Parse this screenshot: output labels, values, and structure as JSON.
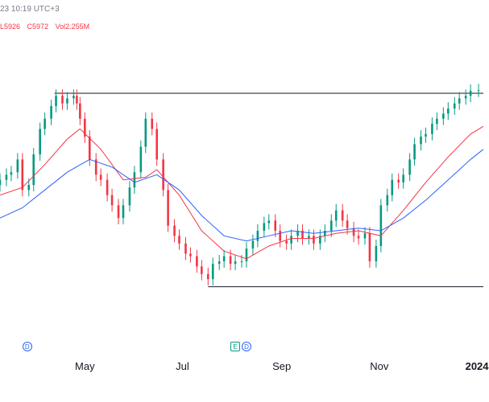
{
  "header": {
    "timestamp": "23 10:19 UTC+3",
    "low": "L5926",
    "close": "C5972",
    "volume": "Vol2.255M"
  },
  "events": [
    {
      "kind": "dividend",
      "letter": "D",
      "date": "2023-03-24"
    },
    {
      "kind": "earnings",
      "letter": "E",
      "date": "2023-08-01"
    },
    {
      "kind": "dividend",
      "letter": "D",
      "date": "2023-08-08"
    }
  ],
  "chart_data": {
    "type": "candlestick",
    "x_axis_labels": [
      {
        "label": "May",
        "date": "2023-05-01",
        "year": false
      },
      {
        "label": "Jul",
        "date": "2023-07-01",
        "year": false
      },
      {
        "label": "Sep",
        "date": "2023-09-01",
        "year": false
      },
      {
        "label": "Nov",
        "date": "2023-11-01",
        "year": false
      },
      {
        "label": "2024",
        "date": "2024-01-01",
        "year": true
      }
    ],
    "x_range": [
      "2023-03-09",
      "2024-01-05"
    ],
    "ylim": [
      5000,
      6200
    ],
    "y_axis_visible": false,
    "grid": false,
    "colors": {
      "up": "#089981",
      "down": "#f23645",
      "ma_fast": "#f23645",
      "ma_slow": "#2962ff",
      "level": "#131722"
    },
    "horizontal_levels": [
      {
        "value": 5960,
        "from": "2023-04-12",
        "to": "2024-01-05"
      },
      {
        "value": 5200,
        "from": "2023-07-17",
        "to": "2024-01-05"
      }
    ],
    "series": [
      {
        "name": "",
        "kind": "close",
        "points": [
          [
            "2023-03-09",
            5620
          ],
          [
            "2023-03-13",
            5640
          ],
          [
            "2023-03-16",
            5650
          ],
          [
            "2023-03-20",
            5700
          ],
          [
            "2023-03-23",
            5580
          ],
          [
            "2023-03-27",
            5600
          ],
          [
            "2023-03-30",
            5720
          ],
          [
            "2023-04-03",
            5820
          ],
          [
            "2023-04-06",
            5860
          ],
          [
            "2023-04-10",
            5910
          ],
          [
            "2023-04-13",
            5950
          ],
          [
            "2023-04-17",
            5920
          ],
          [
            "2023-04-20",
            5940
          ],
          [
            "2023-04-24",
            5950
          ],
          [
            "2023-04-26",
            5920
          ],
          [
            "2023-04-28",
            5860
          ],
          [
            "2023-05-01",
            5790
          ],
          [
            "2023-05-04",
            5700
          ],
          [
            "2023-05-08",
            5640
          ],
          [
            "2023-05-11",
            5620
          ],
          [
            "2023-05-15",
            5560
          ],
          [
            "2023-05-18",
            5520
          ],
          [
            "2023-05-22",
            5470
          ],
          [
            "2023-05-25",
            5520
          ],
          [
            "2023-05-29",
            5590
          ],
          [
            "2023-06-01",
            5650
          ],
          [
            "2023-06-05",
            5750
          ],
          [
            "2023-06-08",
            5860
          ],
          [
            "2023-06-12",
            5820
          ],
          [
            "2023-06-15",
            5700
          ],
          [
            "2023-06-19",
            5580
          ],
          [
            "2023-06-22",
            5440
          ],
          [
            "2023-06-26",
            5400
          ],
          [
            "2023-06-29",
            5370
          ],
          [
            "2023-07-03",
            5330
          ],
          [
            "2023-07-06",
            5320
          ],
          [
            "2023-07-10",
            5280
          ],
          [
            "2023-07-13",
            5250
          ],
          [
            "2023-07-17",
            5230
          ],
          [
            "2023-07-20",
            5290
          ],
          [
            "2023-07-24",
            5300
          ],
          [
            "2023-07-27",
            5320
          ],
          [
            "2023-07-31",
            5290
          ],
          [
            "2023-08-03",
            5300
          ],
          [
            "2023-08-07",
            5300
          ],
          [
            "2023-08-10",
            5350
          ],
          [
            "2023-08-14",
            5380
          ],
          [
            "2023-08-17",
            5420
          ],
          [
            "2023-08-21",
            5450
          ],
          [
            "2023-08-24",
            5460
          ],
          [
            "2023-08-28",
            5420
          ],
          [
            "2023-08-31",
            5380
          ],
          [
            "2023-09-04",
            5370
          ],
          [
            "2023-09-07",
            5400
          ],
          [
            "2023-09-11",
            5420
          ],
          [
            "2023-09-14",
            5390
          ],
          [
            "2023-09-18",
            5400
          ],
          [
            "2023-09-21",
            5370
          ],
          [
            "2023-09-25",
            5400
          ],
          [
            "2023-09-28",
            5420
          ],
          [
            "2023-10-02",
            5460
          ],
          [
            "2023-10-05",
            5500
          ],
          [
            "2023-10-09",
            5460
          ],
          [
            "2023-10-12",
            5430
          ],
          [
            "2023-10-16",
            5400
          ],
          [
            "2023-10-19",
            5390
          ],
          [
            "2023-10-23",
            5410
          ],
          [
            "2023-10-26",
            5300
          ],
          [
            "2023-10-30",
            5360
          ],
          [
            "2023-11-02",
            5520
          ],
          [
            "2023-11-06",
            5560
          ],
          [
            "2023-11-09",
            5620
          ],
          [
            "2023-11-13",
            5610
          ],
          [
            "2023-11-16",
            5640
          ],
          [
            "2023-11-20",
            5700
          ],
          [
            "2023-11-23",
            5760
          ],
          [
            "2023-11-27",
            5790
          ],
          [
            "2023-11-30",
            5800
          ],
          [
            "2023-12-04",
            5840
          ],
          [
            "2023-12-07",
            5860
          ],
          [
            "2023-12-11",
            5880
          ],
          [
            "2023-12-14",
            5900
          ],
          [
            "2023-12-18",
            5920
          ],
          [
            "2023-12-21",
            5940
          ],
          [
            "2023-12-25",
            5950
          ],
          [
            "2023-12-28",
            5970
          ],
          [
            "2024-01-02",
            5972
          ]
        ]
      },
      {
        "name": "",
        "kind": "moving_average_fast",
        "color": "#f23645",
        "points": [
          [
            "2023-03-09",
            5560
          ],
          [
            "2023-03-23",
            5590
          ],
          [
            "2023-04-06",
            5680
          ],
          [
            "2023-04-20",
            5780
          ],
          [
            "2023-04-28",
            5820
          ],
          [
            "2023-05-11",
            5740
          ],
          [
            "2023-05-25",
            5620
          ],
          [
            "2023-06-08",
            5630
          ],
          [
            "2023-06-15",
            5660
          ],
          [
            "2023-06-29",
            5560
          ],
          [
            "2023-07-13",
            5420
          ],
          [
            "2023-07-27",
            5340
          ],
          [
            "2023-08-10",
            5310
          ],
          [
            "2023-08-24",
            5360
          ],
          [
            "2023-09-07",
            5390
          ],
          [
            "2023-09-21",
            5390
          ],
          [
            "2023-10-05",
            5410
          ],
          [
            "2023-10-19",
            5420
          ],
          [
            "2023-11-02",
            5400
          ],
          [
            "2023-11-16",
            5500
          ],
          [
            "2023-11-30",
            5610
          ],
          [
            "2023-12-14",
            5710
          ],
          [
            "2023-12-28",
            5800
          ],
          [
            "2024-01-05",
            5830
          ]
        ]
      },
      {
        "name": "",
        "kind": "moving_average_slow",
        "color": "#2962ff",
        "points": [
          [
            "2023-03-09",
            5470
          ],
          [
            "2023-03-23",
            5510
          ],
          [
            "2023-04-06",
            5580
          ],
          [
            "2023-04-20",
            5650
          ],
          [
            "2023-05-04",
            5700
          ],
          [
            "2023-05-18",
            5670
          ],
          [
            "2023-06-01",
            5610
          ],
          [
            "2023-06-15",
            5640
          ],
          [
            "2023-06-29",
            5580
          ],
          [
            "2023-07-13",
            5480
          ],
          [
            "2023-07-27",
            5400
          ],
          [
            "2023-08-10",
            5380
          ],
          [
            "2023-08-24",
            5400
          ],
          [
            "2023-09-07",
            5420
          ],
          [
            "2023-09-21",
            5410
          ],
          [
            "2023-10-05",
            5420
          ],
          [
            "2023-10-19",
            5430
          ],
          [
            "2023-11-02",
            5420
          ],
          [
            "2023-11-16",
            5470
          ],
          [
            "2023-11-30",
            5540
          ],
          [
            "2023-12-14",
            5620
          ],
          [
            "2023-12-28",
            5700
          ],
          [
            "2024-01-05",
            5740
          ]
        ]
      }
    ]
  }
}
